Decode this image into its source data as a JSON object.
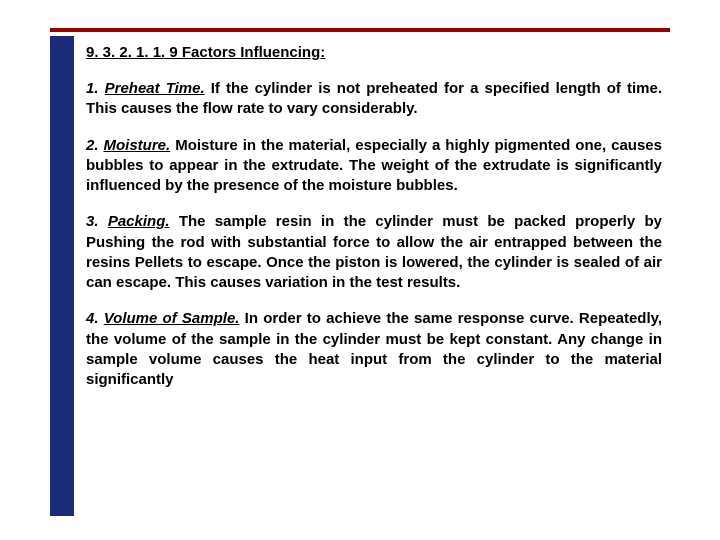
{
  "colors": {
    "rule": "#9a0000",
    "sidebar": "#1a2b7a",
    "text": "#000000",
    "background": "#ffffff"
  },
  "typography": {
    "font_family": "Arial, Helvetica, sans-serif",
    "heading_fontsize": 15,
    "body_fontsize": 15,
    "body_weight": "bold",
    "line_height": 1.35,
    "align": "justify"
  },
  "heading": "9. 3. 2. 1. 1. 9 Factors Influencing:",
  "factors": [
    {
      "num": "1.",
      "label": "Preheat Time.",
      "text": " If the cylinder is not preheated for a specified length of time. This causes the flow rate to vary considerably."
    },
    {
      "num": "2.",
      "label": "Moisture.",
      "text": " Moisture in the material, especially a highly pigmented one, causes bubbles to appear in the extrudate. The weight of the extrudate is significantly influenced by the presence of the moisture bubbles."
    },
    {
      "num": "3.",
      "label": "Packing.",
      "text": " The sample resin in the cylinder must be packed properly by Pushing the rod with substantial force to allow the air entrapped between the resins Pellets to escape. Once the piston is lowered, the cylinder is sealed of air can escape. This causes variation in the test results."
    },
    {
      "num": "4.",
      "label": "Volume of Sample.",
      "text": " In order to achieve the same response curve. Repeatedly, the volume of the sample in the cylinder must be kept constant. Any change in sample volume causes the heat input from the cylinder to the material significantly"
    }
  ]
}
